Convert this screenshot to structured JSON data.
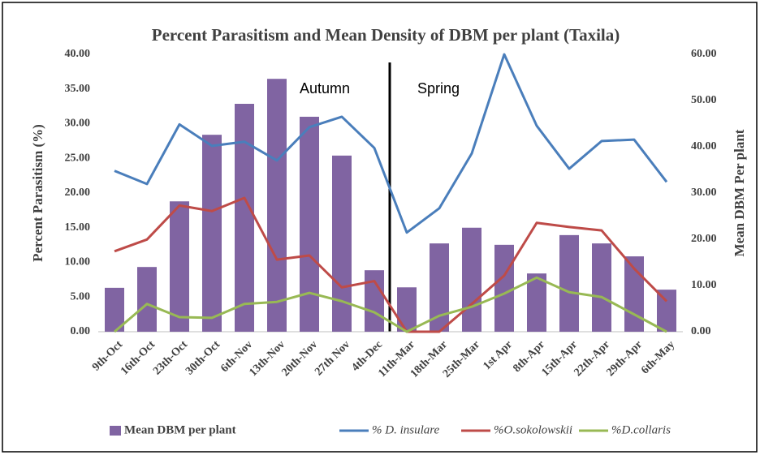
{
  "chart_data": {
    "type": "bar-line",
    "title": "Percent Parasitism and Mean Density of DBM per plant (Taxila)",
    "y_label": "Percent Parasitism (%)",
    "y2_label": "Mean DBM Per plant",
    "annotations": [
      "Autumn",
      "Spring"
    ],
    "categories": [
      "9th-Oct",
      "16th-Oct",
      "23th-Oct",
      "30th-Oct",
      "6th-Nov",
      "13th-Nov",
      "20th-Nov",
      "27th Nov",
      "4th-Dec",
      "11th-Mar",
      "18th-Mar",
      "25th-Mar",
      "1st Apr",
      "8th-Apr",
      "15th-Apr",
      "22th-Apr",
      "29th-Apr",
      "6th-May"
    ],
    "series": [
      {
        "name": "Mean DBM per plant",
        "type": "bar",
        "axis": "y2",
        "color": "#8064a2",
        "values": [
          9.5,
          14.0,
          28.2,
          42.6,
          49.3,
          54.7,
          46.5,
          38.1,
          13.3,
          9.6,
          19.1,
          22.5,
          18.8,
          12.6,
          20.9,
          19.1,
          16.3,
          9.1
        ]
      },
      {
        "name": "% D. insulare",
        "type": "line",
        "color": "#4a7ebb",
        "values": [
          23.2,
          21.3,
          29.9,
          26.8,
          27.4,
          24.7,
          29.5,
          31.0,
          26.5,
          14.3,
          17.8,
          25.7,
          40.0,
          29.7,
          23.5,
          27.5,
          27.7,
          21.6
        ]
      },
      {
        "name": "%O.sokolowskii",
        "type": "line",
        "color": "#be4b48",
        "values": [
          11.6,
          13.3,
          18.2,
          17.4,
          19.3,
          10.4,
          11.0,
          6.4,
          7.3,
          0,
          0,
          4.0,
          8.1,
          15.7,
          15.1,
          14.6,
          9.1,
          4.4
        ]
      },
      {
        "name": "%D.collaris",
        "type": "line",
        "color": "#98b954",
        "values": [
          0,
          4.0,
          2.1,
          2.0,
          4.0,
          4.3,
          5.6,
          4.4,
          2.8,
          0,
          2.3,
          3.6,
          5.5,
          7.8,
          5.7,
          5.0,
          2.5,
          0
        ]
      }
    ],
    "ylim": [
      0,
      40
    ],
    "yticks": [
      {
        "value": 0,
        "label": "0.00"
      },
      {
        "value": 5,
        "label": "5.00"
      },
      {
        "value": 10,
        "label": "10.00"
      },
      {
        "value": 15,
        "label": "15.00"
      },
      {
        "value": 20,
        "label": "20.00"
      },
      {
        "value": 25,
        "label": "25.00"
      },
      {
        "value": 30,
        "label": "30.00"
      },
      {
        "value": 35,
        "label": "35.00"
      },
      {
        "value": 40,
        "label": "40.00"
      }
    ],
    "y2lim": [
      0,
      60
    ],
    "y2ticks": [
      {
        "value": 0,
        "label": "0.00"
      },
      {
        "value": 10,
        "label": "10.00"
      },
      {
        "value": 20,
        "label": "20.00"
      },
      {
        "value": 30,
        "label": "30.00"
      },
      {
        "value": 40,
        "label": "40.00"
      },
      {
        "value": 50,
        "label": "50.00"
      },
      {
        "value": 60,
        "label": "60.00"
      }
    ],
    "grid": false
  }
}
